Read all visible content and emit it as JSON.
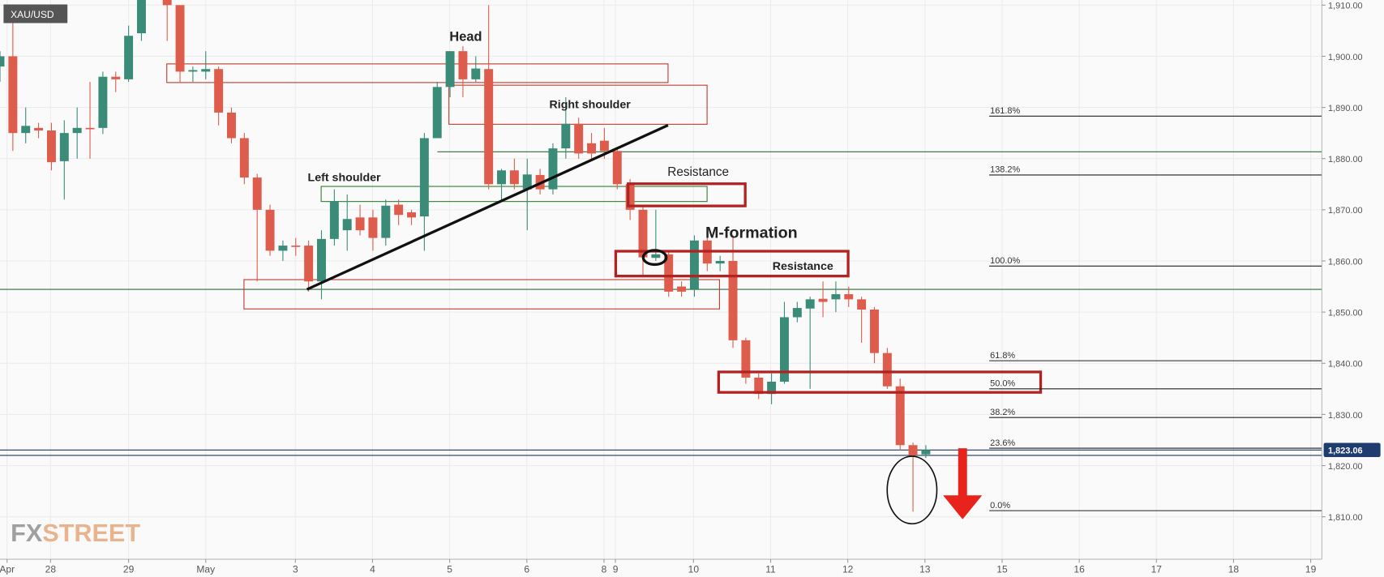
{
  "chart_data": {
    "type": "candlestick",
    "symbol": "XAU/USD",
    "logo": [
      "FX",
      "STREET"
    ],
    "x": [
      0,
      1,
      2,
      3,
      4,
      5,
      6,
      7,
      8,
      9,
      10,
      11,
      13,
      14,
      15,
      16,
      17,
      18,
      19,
      20,
      21,
      22,
      23,
      24,
      25,
      26,
      27,
      28,
      29,
      30,
      31,
      32,
      33,
      34,
      35,
      36,
      37,
      38,
      39,
      40,
      41,
      42,
      43,
      44,
      45,
      46,
      47,
      48,
      49,
      50,
      51,
      52,
      53,
      54,
      55,
      56,
      57,
      58,
      59,
      60,
      61,
      62,
      63,
      64,
      65,
      66,
      67,
      68,
      69,
      70,
      71,
      72
    ],
    "open": [
      1898,
      1900,
      1885,
      1886,
      1885.5,
      1879.5,
      1885,
      1886,
      1886,
      1896,
      1895.5,
      1904.5,
      1912,
      1910,
      1897,
      1897,
      1897.5,
      1889,
      1884,
      1876.3,
      1870,
      1862,
      1863,
      1863,
      1856,
      1864.3,
      1866,
      1868.5,
      1868.5,
      1864.5,
      1871,
      1869.5,
      1868.7,
      1884,
      1894,
      1901,
      1895.5,
      1897.5,
      1875,
      1877.7,
      1874,
      1876.8,
      1874,
      1882,
      1886.8,
      1883,
      1883.5,
      1881.5,
      1875,
      1870,
      1860.6,
      1861.3,
      1855,
      1854.5,
      1864,
      1859.5,
      1860,
      1844.5,
      1837.2,
      1834,
      1836.4,
      1849,
      1850.7,
      1852.6,
      1852.5,
      1853.5,
      1852.5,
      1850.5,
      1842,
      1835.5,
      1824,
      1822.2
    ],
    "high": [
      1901,
      1907,
      1890,
      1887,
      1887,
      1887.5,
      1890,
      1895,
      1897,
      1897,
      1906,
      1913,
      1913,
      1910,
      1898,
      1901,
      1898,
      1890,
      1885,
      1877,
      1871,
      1864,
      1864.5,
      1864,
      1866,
      1874,
      1873,
      1871,
      1870,
      1872,
      1872,
      1870,
      1885,
      1895,
      1901,
      1902,
      1900,
      1910,
      1878,
      1880,
      1880,
      1878,
      1883,
      1892,
      1888,
      1885,
      1886,
      1882,
      1876,
      1871,
      1870,
      1862,
      1856,
      1865,
      1865,
      1861,
      1865,
      1845,
      1838,
      1838,
      1852,
      1852,
      1853,
      1856,
      1856,
      1855,
      1853,
      1851,
      1843,
      1837,
      1824.5,
      1824
    ],
    "low": [
      1895,
      1881.5,
      1883,
      1884,
      1877.7,
      1872,
      1880,
      1880,
      1884.8,
      1893,
      1895,
      1903,
      1903,
      1895,
      1895,
      1895.5,
      1886.5,
      1883,
      1875,
      1856,
      1861,
      1860,
      1861,
      1854,
      1852.5,
      1863,
      1862,
      1865,
      1862,
      1863,
      1867,
      1867,
      1862,
      1884,
      1892,
      1892,
      1895,
      1874,
      1872,
      1874,
      1866,
      1873,
      1873,
      1880,
      1880,
      1880,
      1880,
      1874,
      1868,
      1857,
      1860,
      1853,
      1853,
      1853,
      1858,
      1858,
      1843,
      1836,
      1833,
      1832,
      1836,
      1848,
      1835,
      1849,
      1850,
      1851,
      1844,
      1840,
      1835,
      1823,
      1811,
      1821.5
    ],
    "close": [
      1900,
      1885,
      1886.4,
      1885.5,
      1879.3,
      1885,
      1886,
      1885.8,
      1896,
      1895.5,
      1904,
      1912,
      1910,
      1897,
      1897.3,
      1897.5,
      1889,
      1884,
      1876.3,
      1870,
      1862,
      1863,
      1862.8,
      1856,
      1864.3,
      1871.7,
      1868.2,
      1866,
      1864.5,
      1870.8,
      1869,
      1868.5,
      1884,
      1894,
      1901,
      1895.5,
      1897.6,
      1875,
      1877.7,
      1875,
      1876.9,
      1874,
      1882,
      1886.8,
      1881,
      1881,
      1881.5,
      1875,
      1870,
      1860.7,
      1861.3,
      1854,
      1854,
      1864,
      1859.5,
      1860,
      1844.5,
      1837.2,
      1834,
      1836.4,
      1849,
      1850.8,
      1852.5,
      1852,
      1853.5,
      1852.5,
      1850.5,
      1842,
      1835.5,
      1824,
      1822,
      1823.06
    ],
    "up_color": "#3a8b77",
    "down_color": "#dd5c4b",
    "xlim": [
      0,
      102.8
    ],
    "ylim": [
      1801.7,
      1911
    ],
    "xticks": [
      {
        "value": 0.55,
        "label": "Apr"
      },
      {
        "value": 3.93,
        "label": "28"
      },
      {
        "value": 10,
        "label": "29"
      },
      {
        "value": 16,
        "label": "May"
      },
      {
        "value": 22.97,
        "label": "3"
      },
      {
        "value": 28.97,
        "label": "4"
      },
      {
        "value": 34.97,
        "label": "5"
      },
      {
        "value": 40.97,
        "label": "6"
      },
      {
        "value": 46.97,
        "label": "8"
      },
      {
        "value": 47.86,
        "label": "9"
      },
      {
        "value": 53.93,
        "label": "10"
      },
      {
        "value": 59.93,
        "label": "11"
      },
      {
        "value": 65.93,
        "label": "12"
      },
      {
        "value": 71.93,
        "label": "13"
      },
      {
        "value": 77.93,
        "label": "15"
      },
      {
        "value": 83.93,
        "label": "16"
      },
      {
        "value": 89.93,
        "label": "17"
      },
      {
        "value": 95.93,
        "label": "18"
      },
      {
        "value": 101.93,
        "label": "19"
      }
    ],
    "yticks": [
      {
        "value": 1810,
        "label": "1,810.00"
      },
      {
        "value": 1820,
        "label": "1,820.00"
      },
      {
        "value": 1830,
        "label": "1,830.00"
      },
      {
        "value": 1840,
        "label": "1,840.00"
      },
      {
        "value": 1850,
        "label": "1,850.00"
      },
      {
        "value": 1860,
        "label": "1,860.00"
      },
      {
        "value": 1870,
        "label": "1,870.00"
      },
      {
        "value": 1880,
        "label": "1,880.00"
      },
      {
        "value": 1890,
        "label": "1,890.00"
      },
      {
        "value": 1900,
        "label": "1,900.00"
      },
      {
        "value": 1910,
        "label": "1,910.00"
      }
    ],
    "grid": true,
    "last_price": {
      "value": 1823.06,
      "label": "1,823.06"
    },
    "fib_levels": [
      {
        "label": "161.8%",
        "price": 1888.3
      },
      {
        "label": "138.2%",
        "price": 1876.8
      },
      {
        "label": "100.0%",
        "price": 1859
      },
      {
        "label": "61.8%",
        "price": 1840.5
      },
      {
        "label": "50.0%",
        "price": 1835
      },
      {
        "label": "38.2%",
        "price": 1829.4
      },
      {
        "label": "23.6%",
        "price": 1823.4
      },
      {
        "label": "0.0%",
        "price": 1811.2
      }
    ],
    "annotations": [
      "Head",
      "Left shoulder",
      "Right shoulder",
      "Resistance",
      "M-formation",
      "Resistance"
    ]
  }
}
